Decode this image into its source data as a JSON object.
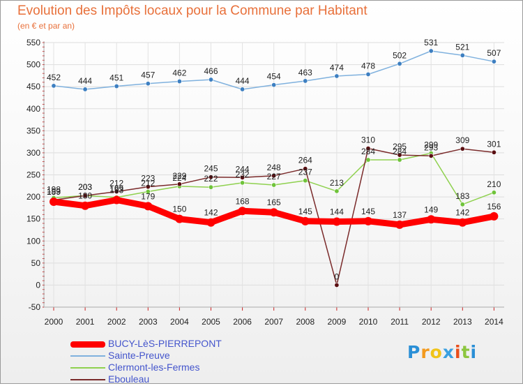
{
  "title": "Evolution des Impôts locaux pour la Commune par Habitant",
  "subtitle": "(en € et par an)",
  "chart_data": {
    "type": "line",
    "title": "Evolution des Impôts locaux pour la Commune par Habitant",
    "subtitle": "(en € et par an)",
    "xlabel": "",
    "ylabel": "",
    "ylim": [
      -50,
      550
    ],
    "yticks": [
      -50,
      0,
      50,
      100,
      150,
      200,
      250,
      300,
      350,
      400,
      450,
      500,
      550
    ],
    "grid": true,
    "legend_position": "bottom-left",
    "categories": [
      "2000",
      "2001",
      "2002",
      "2003",
      "2004",
      "2005",
      "2006",
      "2007",
      "2008",
      "2009",
      "2010",
      "2011",
      "2012",
      "2013",
      "2014"
    ],
    "series": [
      {
        "name": "BUCY-LèS-PIERREPONT",
        "color": "#ff0000",
        "values": [
          189,
          180,
          193,
          179,
          150,
          142,
          168,
          165,
          145,
          144,
          145,
          137,
          149,
          142,
          156
        ]
      },
      {
        "name": "Sainte-Preuve",
        "color": "#7fb1de",
        "values": [
          452,
          444,
          451,
          457,
          462,
          466,
          444,
          454,
          463,
          474,
          478,
          502,
          531,
          521,
          507
        ]
      },
      {
        "name": "Clermont-les-Fermes",
        "color": "#8fd14f",
        "values": [
          198,
          203,
          199,
          212,
          224,
          222,
          232,
          227,
          237,
          213,
          284,
          284,
          299,
          183,
          210
        ]
      },
      {
        "name": "Ebouleau",
        "color": "#7a2a2a",
        "values": [
          193,
          203,
          212,
          223,
          229,
          245,
          244,
          248,
          264,
          0,
          310,
          295,
          293,
          309,
          301
        ]
      }
    ]
  },
  "legend": [
    {
      "label": "BUCY-LèS-PIERREPONT",
      "color": "#ff0000"
    },
    {
      "label": "Sainte-Preuve",
      "color": "#7fb1de"
    },
    {
      "label": "Clermont-les-Fermes",
      "color": "#8fd14f"
    },
    {
      "label": "Ebouleau",
      "color": "#7a2a2a"
    }
  ],
  "logo": {
    "letters": [
      "P",
      "r",
      "o",
      "x",
      "i",
      "t",
      "i"
    ],
    "colors": [
      "#2a8fd6",
      "#f39a1e",
      "#f0c419",
      "#3aa0e0",
      "#e94e1b",
      "#8cc63f",
      "#2a8fd6"
    ]
  }
}
